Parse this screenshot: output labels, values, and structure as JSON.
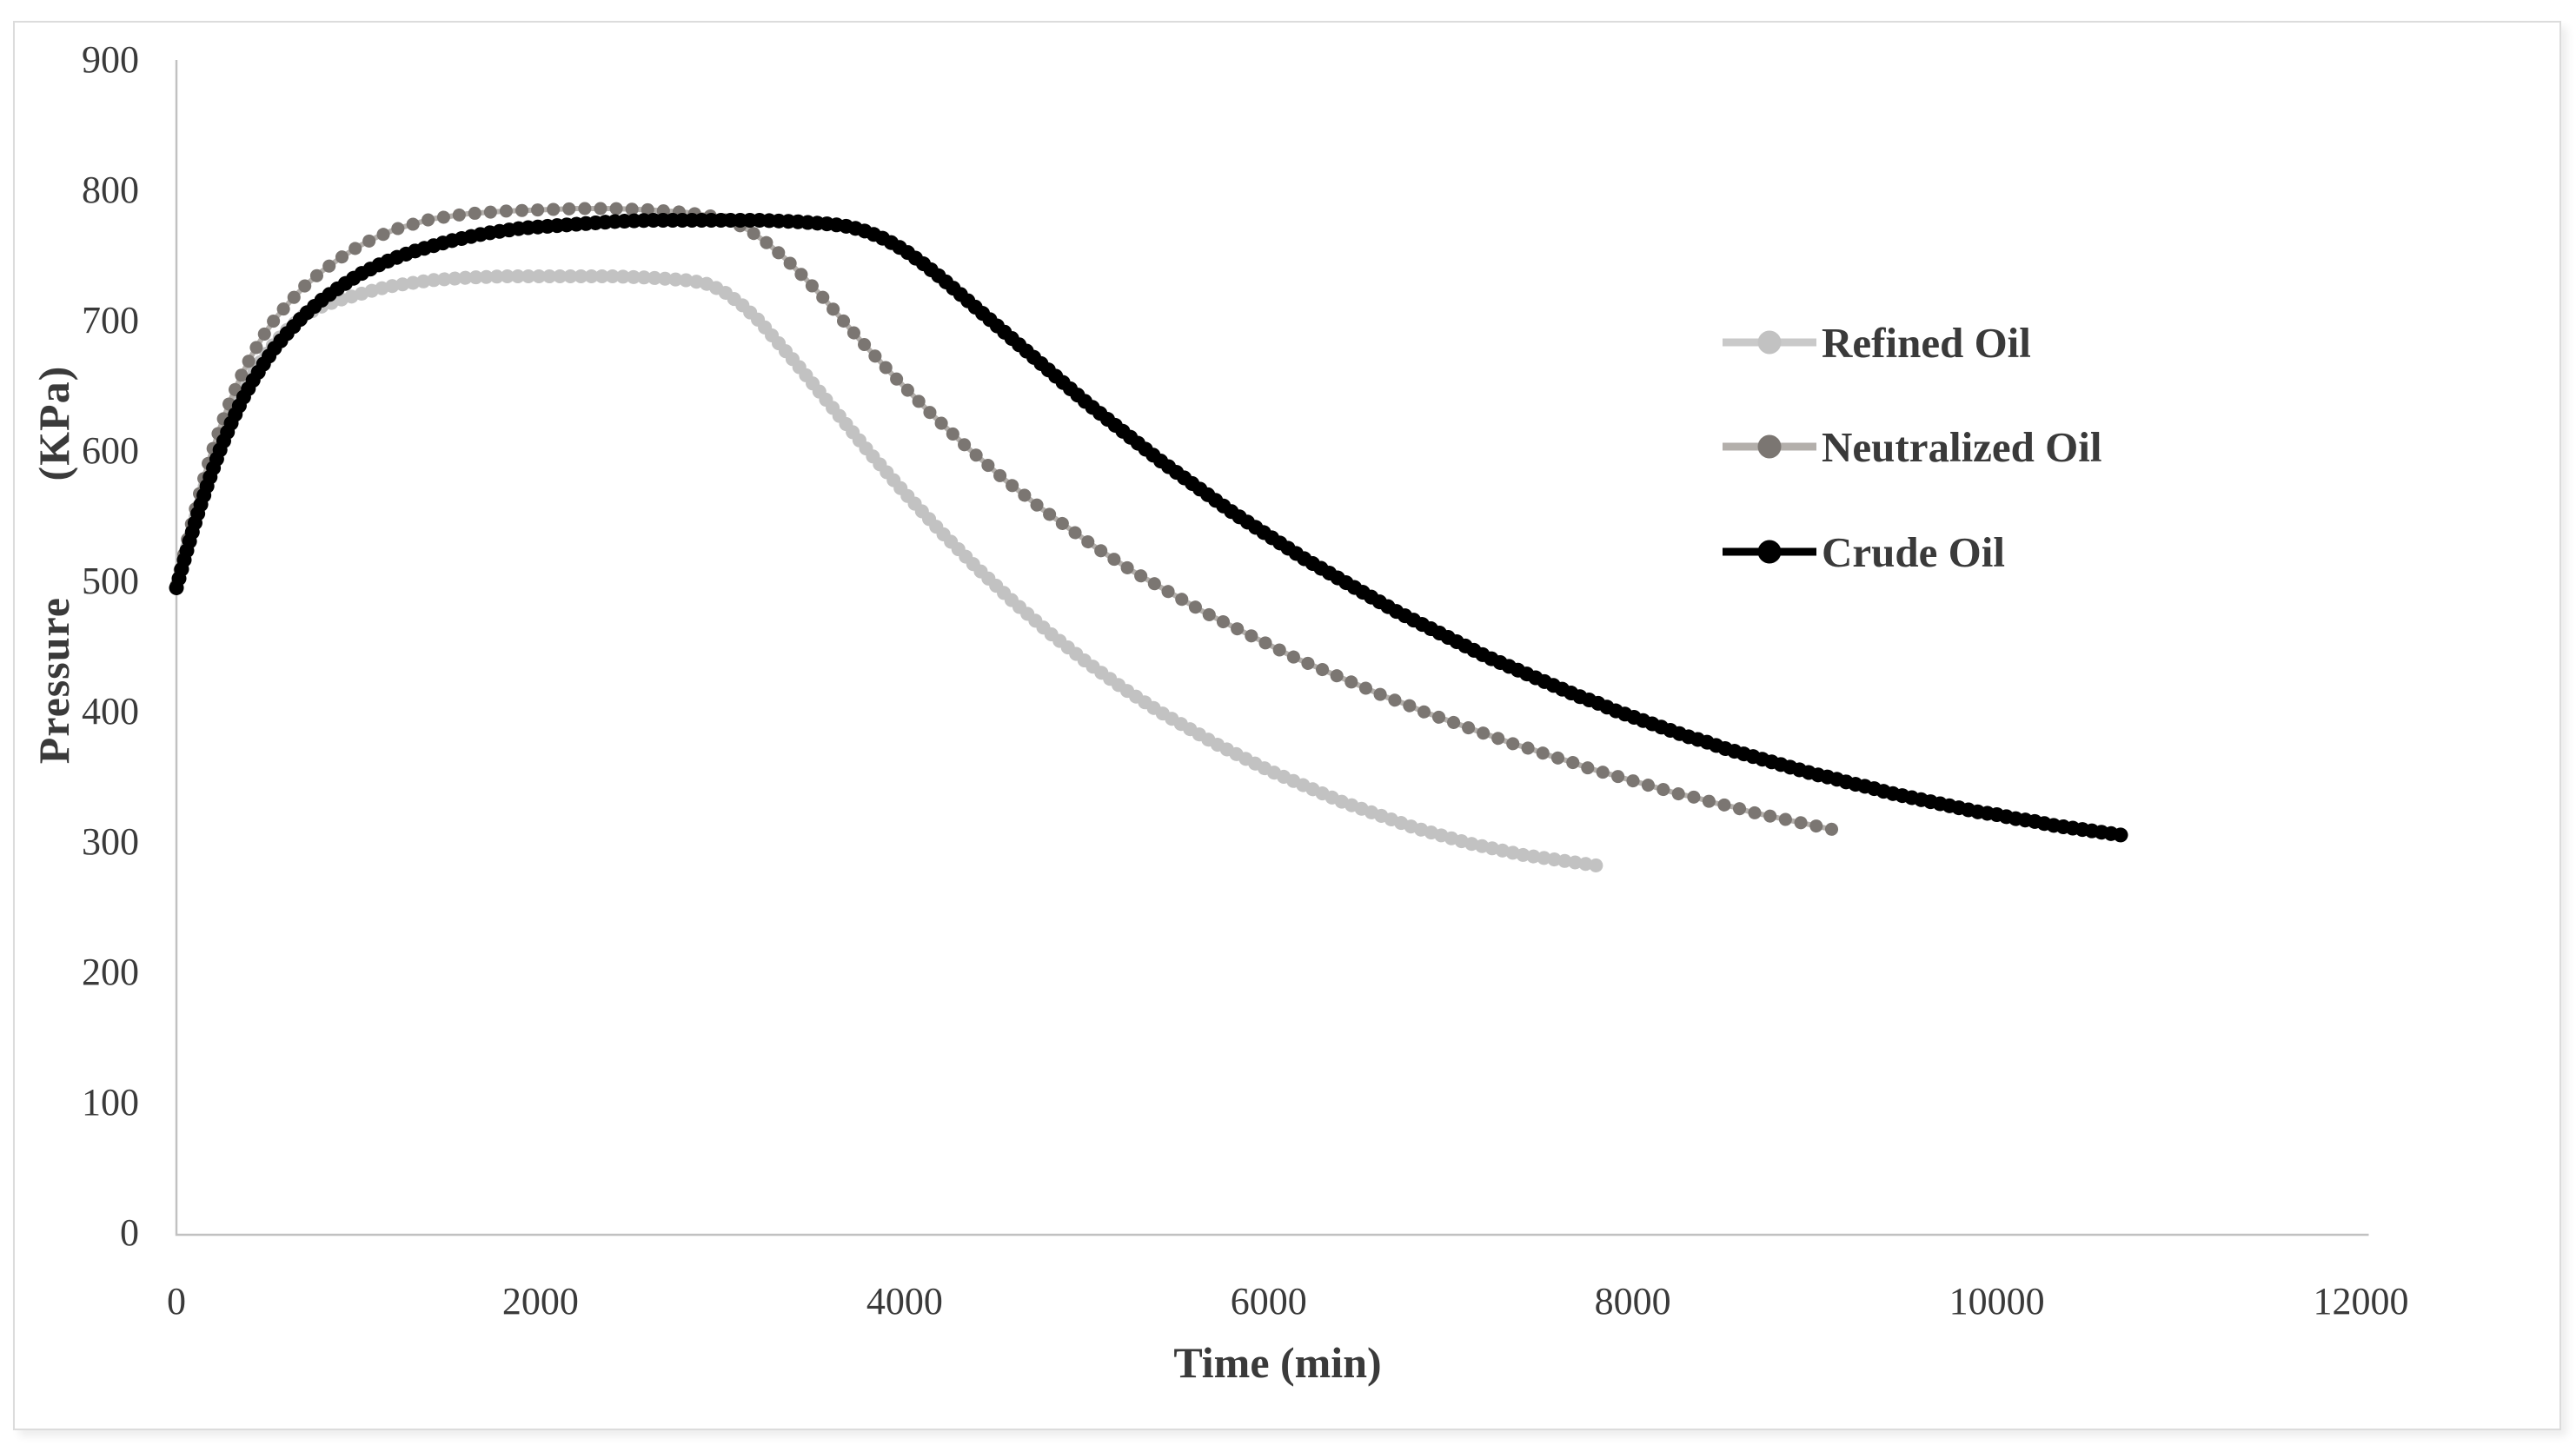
{
  "text_color": "#3a3a3a",
  "frame": {
    "border_color": "#dcdcdc"
  },
  "chart_data": {
    "type": "line",
    "title": "",
    "grid": false,
    "x_axis": {
      "title": "Time (min)",
      "min": 0,
      "max": 12000,
      "tick_step": 2000,
      "ticks": [
        0,
        2000,
        4000,
        6000,
        8000,
        10000,
        12000
      ],
      "axis_color": "#c1c1c1"
    },
    "y_axis": {
      "title": "Pressure (KPa)",
      "min": 0,
      "max": 900,
      "tick_step": 100,
      "ticks": [
        0,
        100,
        200,
        300,
        400,
        500,
        600,
        700,
        800,
        900
      ],
      "axis_color": "#c1c1c1"
    },
    "legend": {
      "position": "right",
      "items": [
        "Refined Oil",
        "Neutralized Oil",
        "Crude Oil"
      ]
    },
    "series": [
      {
        "name": "Refined Oil",
        "marker_color": "#c2c2c2",
        "line_color": "#c9c9c9",
        "points": [
          [
            0,
            495
          ],
          [
            60,
            527
          ],
          [
            120,
            557
          ],
          [
            180,
            584
          ],
          [
            240,
            607
          ],
          [
            300,
            627
          ],
          [
            360,
            645
          ],
          [
            420,
            660
          ],
          [
            480,
            672
          ],
          [
            540,
            683
          ],
          [
            600,
            692
          ],
          [
            700,
            704
          ],
          [
            800,
            711
          ],
          [
            900,
            716
          ],
          [
            1000,
            720
          ],
          [
            1100,
            724
          ],
          [
            1200,
            727
          ],
          [
            1400,
            731
          ],
          [
            1600,
            733
          ],
          [
            1800,
            734
          ],
          [
            2000,
            734
          ],
          [
            2200,
            734
          ],
          [
            2400,
            734
          ],
          [
            2600,
            733
          ],
          [
            2800,
            731
          ],
          [
            2900,
            729
          ],
          [
            3000,
            723
          ],
          [
            3100,
            713
          ],
          [
            3200,
            700
          ],
          [
            3300,
            684
          ],
          [
            3400,
            668
          ],
          [
            3500,
            651
          ],
          [
            3600,
            634
          ],
          [
            3700,
            617
          ],
          [
            3800,
            600
          ],
          [
            3900,
            584
          ],
          [
            4000,
            568
          ],
          [
            4100,
            553
          ],
          [
            4200,
            538
          ],
          [
            4300,
            524
          ],
          [
            4400,
            510
          ],
          [
            4500,
            497
          ],
          [
            4600,
            484
          ],
          [
            4700,
            472
          ],
          [
            4800,
            460
          ],
          [
            4900,
            449
          ],
          [
            5000,
            438
          ],
          [
            5100,
            428
          ],
          [
            5200,
            418
          ],
          [
            5300,
            409
          ],
          [
            5400,
            400
          ],
          [
            5500,
            392
          ],
          [
            5600,
            384
          ],
          [
            5700,
            376
          ],
          [
            5800,
            369
          ],
          [
            5900,
            362
          ],
          [
            6000,
            355
          ],
          [
            6100,
            349
          ],
          [
            6200,
            343
          ],
          [
            6300,
            337
          ],
          [
            6400,
            331
          ],
          [
            6500,
            326
          ],
          [
            6600,
            321
          ],
          [
            6700,
            316
          ],
          [
            6800,
            311
          ],
          [
            6900,
            307
          ],
          [
            7000,
            303
          ],
          [
            7100,
            299
          ],
          [
            7200,
            296
          ],
          [
            7300,
            293
          ],
          [
            7400,
            290
          ],
          [
            7500,
            288
          ],
          [
            7600,
            286
          ],
          [
            7700,
            284
          ],
          [
            7800,
            282
          ]
        ]
      },
      {
        "name": "Neutralized Oil",
        "marker_color": "#7b7672",
        "line_color": "#b3afab",
        "points": [
          [
            0,
            497
          ],
          [
            60,
            532
          ],
          [
            120,
            564
          ],
          [
            180,
            593
          ],
          [
            240,
            618
          ],
          [
            300,
            640
          ],
          [
            360,
            659
          ],
          [
            420,
            675
          ],
          [
            480,
            689
          ],
          [
            540,
            701
          ],
          [
            600,
            711
          ],
          [
            700,
            726
          ],
          [
            800,
            738
          ],
          [
            900,
            748
          ],
          [
            1000,
            757
          ],
          [
            1100,
            764
          ],
          [
            1200,
            770
          ],
          [
            1300,
            774
          ],
          [
            1400,
            778
          ],
          [
            1500,
            780
          ],
          [
            1600,
            782
          ],
          [
            1800,
            784
          ],
          [
            2000,
            785
          ],
          [
            2200,
            786
          ],
          [
            2400,
            786
          ],
          [
            2600,
            785
          ],
          [
            2800,
            783
          ],
          [
            2950,
            780
          ],
          [
            3050,
            776
          ],
          [
            3150,
            769
          ],
          [
            3250,
            759
          ],
          [
            3350,
            747
          ],
          [
            3450,
            733
          ],
          [
            3550,
            718
          ],
          [
            3650,
            702
          ],
          [
            3750,
            686
          ],
          [
            3850,
            671
          ],
          [
            3950,
            656
          ],
          [
            4050,
            642
          ],
          [
            4150,
            628
          ],
          [
            4250,
            615
          ],
          [
            4350,
            602
          ],
          [
            4450,
            590
          ],
          [
            4550,
            578
          ],
          [
            4650,
            567
          ],
          [
            4750,
            556
          ],
          [
            4850,
            546
          ],
          [
            4950,
            536
          ],
          [
            5050,
            526
          ],
          [
            5150,
            517
          ],
          [
            5250,
            508
          ],
          [
            5350,
            500
          ],
          [
            5450,
            492
          ],
          [
            5550,
            484
          ],
          [
            5650,
            476
          ],
          [
            5750,
            469
          ],
          [
            5850,
            462
          ],
          [
            5950,
            455
          ],
          [
            6050,
            448
          ],
          [
            6150,
            441
          ],
          [
            6250,
            435
          ],
          [
            6350,
            429
          ],
          [
            6450,
            423
          ],
          [
            6550,
            417
          ],
          [
            6650,
            411
          ],
          [
            6750,
            406
          ],
          [
            6850,
            400
          ],
          [
            6950,
            395
          ],
          [
            7050,
            390
          ],
          [
            7150,
            385
          ],
          [
            7250,
            380
          ],
          [
            7350,
            375
          ],
          [
            7450,
            371
          ],
          [
            7550,
            366
          ],
          [
            7650,
            362
          ],
          [
            7750,
            357
          ],
          [
            7850,
            353
          ],
          [
            7950,
            349
          ],
          [
            8050,
            345
          ],
          [
            8150,
            341
          ],
          [
            8250,
            337
          ],
          [
            8350,
            334
          ],
          [
            8450,
            330
          ],
          [
            8550,
            327
          ],
          [
            8650,
            323
          ],
          [
            8750,
            320
          ],
          [
            8850,
            317
          ],
          [
            8950,
            314
          ],
          [
            9050,
            311
          ],
          [
            9120,
            309
          ]
        ]
      },
      {
        "name": "Crude Oil",
        "marker_color": "#000000",
        "line_color": "#000000",
        "points": [
          [
            0,
            495
          ],
          [
            60,
            525
          ],
          [
            120,
            553
          ],
          [
            180,
            578
          ],
          [
            240,
            601
          ],
          [
            300,
            621
          ],
          [
            360,
            639
          ],
          [
            420,
            654
          ],
          [
            480,
            667
          ],
          [
            540,
            679
          ],
          [
            600,
            689
          ],
          [
            700,
            704
          ],
          [
            800,
            716
          ],
          [
            900,
            726
          ],
          [
            1000,
            735
          ],
          [
            1100,
            742
          ],
          [
            1200,
            748
          ],
          [
            1300,
            753
          ],
          [
            1400,
            757
          ],
          [
            1500,
            761
          ],
          [
            1600,
            764
          ],
          [
            1700,
            767
          ],
          [
            1800,
            769
          ],
          [
            1900,
            771
          ],
          [
            2000,
            772
          ],
          [
            2200,
            774
          ],
          [
            2400,
            776
          ],
          [
            2600,
            777
          ],
          [
            2800,
            777
          ],
          [
            3000,
            777
          ],
          [
            3200,
            777
          ],
          [
            3400,
            776
          ],
          [
            3500,
            775
          ],
          [
            3600,
            774
          ],
          [
            3700,
            772
          ],
          [
            3800,
            768
          ],
          [
            3900,
            762
          ],
          [
            4000,
            754
          ],
          [
            4100,
            744
          ],
          [
            4200,
            733
          ],
          [
            4300,
            721
          ],
          [
            4400,
            709
          ],
          [
            4500,
            697
          ],
          [
            4600,
            685
          ],
          [
            4700,
            673
          ],
          [
            4800,
            661
          ],
          [
            4900,
            649
          ],
          [
            5000,
            637
          ],
          [
            5100,
            626
          ],
          [
            5200,
            615
          ],
          [
            5300,
            604
          ],
          [
            5400,
            593
          ],
          [
            5500,
            583
          ],
          [
            5600,
            573
          ],
          [
            5700,
            563
          ],
          [
            5800,
            553
          ],
          [
            5900,
            544
          ],
          [
            6000,
            535
          ],
          [
            6100,
            526
          ],
          [
            6200,
            517
          ],
          [
            6300,
            509
          ],
          [
            6400,
            501
          ],
          [
            6500,
            493
          ],
          [
            6600,
            485
          ],
          [
            6700,
            477
          ],
          [
            6800,
            470
          ],
          [
            6900,
            463
          ],
          [
            7000,
            456
          ],
          [
            7100,
            449
          ],
          [
            7200,
            442
          ],
          [
            7300,
            436
          ],
          [
            7400,
            430
          ],
          [
            7500,
            424
          ],
          [
            7600,
            418
          ],
          [
            7700,
            412
          ],
          [
            7800,
            407
          ],
          [
            7900,
            401
          ],
          [
            8000,
            396
          ],
          [
            8100,
            391
          ],
          [
            8200,
            386
          ],
          [
            8300,
            381
          ],
          [
            8400,
            377
          ],
          [
            8500,
            372
          ],
          [
            8600,
            368
          ],
          [
            8700,
            364
          ],
          [
            8800,
            360
          ],
          [
            8900,
            356
          ],
          [
            9000,
            352
          ],
          [
            9100,
            349
          ],
          [
            9200,
            345
          ],
          [
            9300,
            342
          ],
          [
            9400,
            338
          ],
          [
            9500,
            335
          ],
          [
            9600,
            332
          ],
          [
            9700,
            329
          ],
          [
            9800,
            326
          ],
          [
            9900,
            323
          ],
          [
            10000,
            321
          ],
          [
            10100,
            318
          ],
          [
            10200,
            316
          ],
          [
            10300,
            313
          ],
          [
            10400,
            311
          ],
          [
            10500,
            309
          ],
          [
            10600,
            307
          ],
          [
            10700,
            305
          ]
        ]
      }
    ]
  }
}
